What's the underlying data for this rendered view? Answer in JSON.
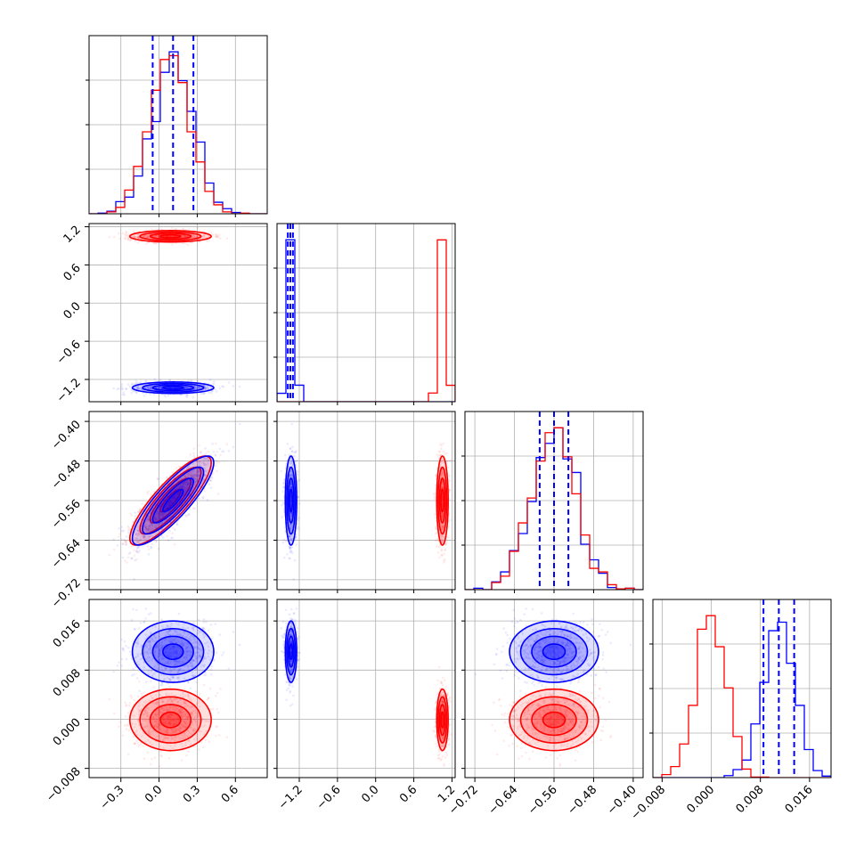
{
  "colors": {
    "red": "#ff0000",
    "blue": "#0000ff",
    "grid": "#b0b0b0",
    "axis": "#000000"
  },
  "chart_data": {
    "type": "corner",
    "parameters": [
      {
        "ticks": [
          -0.3,
          0.0,
          0.3,
          0.6
        ],
        "tick_labels": [
          "−0.3",
          "0.0",
          "0.3",
          "0.6"
        ],
        "range": [
          -0.55,
          0.85
        ]
      },
      {
        "ticks": [
          -1.2,
          -0.6,
          0.0,
          0.6,
          1.2
        ],
        "tick_labels": [
          "−1.2",
          "−0.6",
          "0.0",
          "0.6",
          "1.2"
        ],
        "range": [
          -1.55,
          1.25
        ]
      },
      {
        "ticks": [
          -0.72,
          -0.64,
          -0.56,
          -0.48,
          -0.4
        ],
        "tick_labels": [
          "−0.72",
          "−0.64",
          "−0.56",
          "−0.48",
          "−0.40"
        ],
        "range": [
          -0.74,
          -0.38
        ]
      },
      {
        "ticks": [
          -0.008,
          0.0,
          0.008,
          0.016
        ],
        "tick_labels": [
          "−0.008",
          "0.000",
          "0.008",
          "0.016"
        ],
        "range": [
          -0.0095,
          0.0195
        ]
      }
    ],
    "series": [
      {
        "color": "red",
        "mean": [
          0.09,
          1.05,
          -0.56,
          -0.0001
        ],
        "sd": [
          0.16,
          0.045,
          0.045,
          0.0025
        ],
        "corr_0_2": 0.85
      },
      {
        "color": "blue",
        "mean": [
          0.11,
          -1.33,
          -0.56,
          0.011
        ],
        "sd": [
          0.16,
          0.045,
          0.045,
          0.0025
        ],
        "corr_0_2": 0.85
      }
    ],
    "quantile_lines": [
      [
        -0.05,
        0.11,
        0.27
      ],
      [
        -1.38,
        -1.34,
        -1.3
      ],
      [
        -0.589,
        -0.56,
        -0.531
      ],
      [
        0.0085,
        0.011,
        0.0135
      ]
    ],
    "grid": true
  }
}
